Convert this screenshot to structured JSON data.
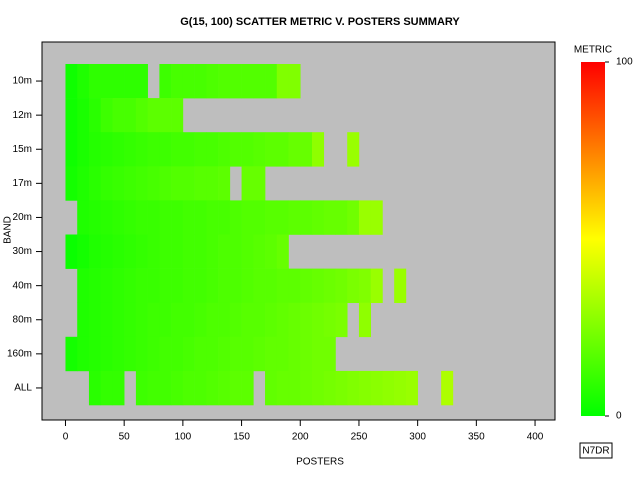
{
  "chart_data": {
    "type": "heatmap",
    "title": "G(15, 100) SCATTER METRIC V. POSTERS SUMMARY",
    "x_label": "POSTERS",
    "y_label": "BAND",
    "categories": [
      "10m",
      "12m",
      "15m",
      "17m",
      "20m",
      "30m",
      "40m",
      "80m",
      "160m",
      "ALL"
    ],
    "bins": [
      0,
      10,
      20,
      30,
      40,
      50,
      60,
      70,
      80,
      90,
      100,
      110,
      120,
      130,
      140,
      150,
      160,
      170,
      180,
      190,
      200,
      210,
      220,
      230,
      240,
      250,
      260,
      270,
      280,
      290,
      300,
      310,
      320,
      330,
      340
    ],
    "z": [
      [
        3,
        6,
        9,
        9,
        9,
        9,
        9,
        null,
        12,
        14,
        14,
        14,
        15,
        16,
        16,
        16,
        16,
        16,
        25,
        25,
        null,
        null,
        null,
        null,
        null,
        null,
        null,
        null,
        null,
        null,
        null,
        null,
        null,
        null
      ],
      [
        3,
        5,
        8,
        12,
        14,
        14,
        16,
        18,
        18,
        18,
        null,
        null,
        null,
        null,
        null,
        null,
        null,
        null,
        null,
        null,
        null,
        null,
        null,
        null,
        null,
        null,
        null,
        null,
        null,
        null,
        null,
        null,
        null,
        null
      ],
      [
        3,
        5,
        7,
        8,
        9,
        10,
        11,
        12,
        12,
        13,
        13,
        14,
        14,
        15,
        16,
        16,
        17,
        18,
        18,
        20,
        20,
        28,
        null,
        null,
        30,
        null,
        null,
        null,
        null,
        null,
        null,
        null,
        null,
        null
      ],
      [
        4,
        6,
        8,
        10,
        11,
        12,
        13,
        14,
        15,
        16,
        16,
        17,
        17,
        18,
        null,
        20,
        20,
        null,
        null,
        null,
        null,
        null,
        null,
        null,
        null,
        null,
        null,
        null,
        null,
        null,
        null,
        null,
        null,
        null
      ],
      [
        null,
        6,
        7,
        8,
        9,
        10,
        11,
        11,
        12,
        12,
        13,
        13,
        14,
        14,
        15,
        16,
        16,
        17,
        17,
        18,
        18,
        19,
        20,
        20,
        22,
        30,
        30,
        null,
        null,
        null,
        null,
        null,
        null,
        null
      ],
      [
        2,
        4,
        6,
        7,
        8,
        9,
        10,
        11,
        12,
        12,
        13,
        13,
        14,
        15,
        15,
        16,
        17,
        18,
        20,
        null,
        null,
        null,
        null,
        null,
        null,
        null,
        null,
        null,
        null,
        null,
        null,
        null,
        null,
        null
      ],
      [
        null,
        6,
        7,
        8,
        9,
        10,
        11,
        11,
        12,
        12,
        13,
        13,
        14,
        15,
        15,
        16,
        17,
        17,
        18,
        18,
        19,
        20,
        21,
        22,
        24,
        25,
        30,
        null,
        30,
        null,
        null,
        null,
        null,
        null
      ],
      [
        null,
        6,
        7,
        8,
        9,
        10,
        11,
        12,
        12,
        13,
        13,
        14,
        15,
        15,
        16,
        17,
        17,
        18,
        19,
        20,
        21,
        22,
        23,
        24,
        null,
        28,
        null,
        null,
        null,
        null,
        null,
        null,
        null,
        null
      ],
      [
        4,
        6,
        7,
        8,
        9,
        10,
        11,
        12,
        13,
        13,
        14,
        15,
        15,
        16,
        17,
        17,
        18,
        19,
        19,
        20,
        21,
        22,
        22,
        null,
        null,
        null,
        null,
        null,
        null,
        null,
        null,
        null,
        null,
        null
      ],
      [
        null,
        null,
        8,
        10,
        10,
        null,
        12,
        13,
        13,
        14,
        15,
        15,
        16,
        17,
        18,
        18,
        null,
        19,
        20,
        20,
        21,
        22,
        23,
        24,
        25,
        26,
        27,
        28,
        29,
        30,
        null,
        null,
        34,
        null
      ]
    ],
    "xlim": [
      -20,
      417
    ],
    "xticks": [
      0,
      50,
      100,
      150,
      200,
      250,
      300,
      350,
      400
    ],
    "colorscale": [
      "#00ff00",
      "#ffff00",
      "#ff0000"
    ],
    "colorbar_label": "METRIC",
    "zlim": [
      0,
      100
    ],
    "zticks": [
      0,
      100
    ],
    "background": "#bebebe",
    "footer": "N7DR"
  }
}
